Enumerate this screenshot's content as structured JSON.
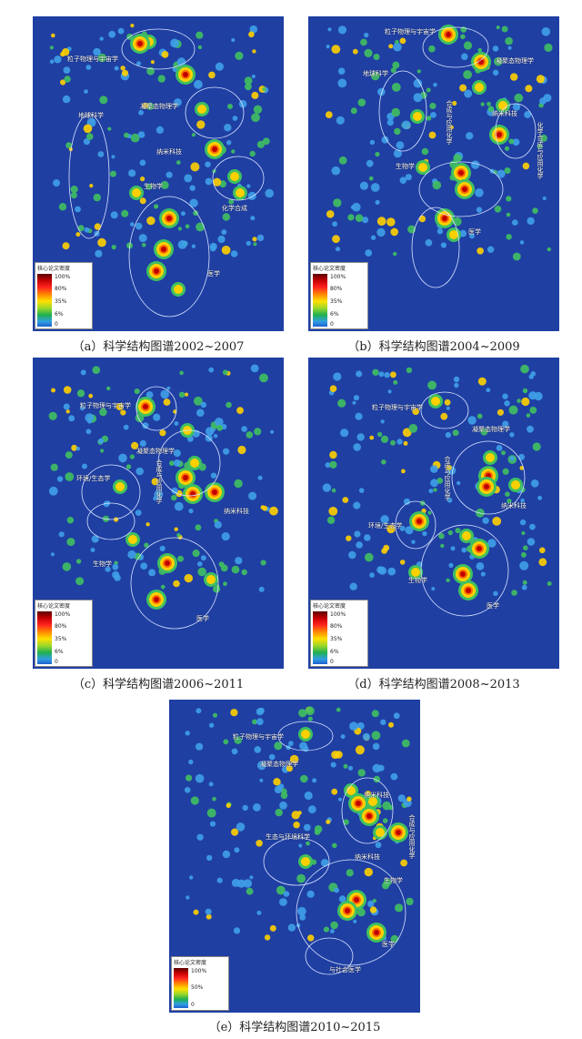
{
  "panels": [
    {
      "caption": "（a）科学结构图谱2002~2007",
      "legend": {
        "title": "核心论文密度",
        "ticks": [
          "100%",
          "80%",
          "35%",
          "6%",
          "0"
        ]
      },
      "labels": [
        {
          "text": "粒子物理与宇宙学"
        },
        {
          "text": "凝聚态物理学"
        },
        {
          "text": "地球科学"
        },
        {
          "text": "纳米科技"
        },
        {
          "text": "生物学"
        },
        {
          "text": "化学合成"
        },
        {
          "text": "医学"
        }
      ]
    },
    {
      "caption": "（b）科学结构图谱2004~2009",
      "legend": {
        "title": "核心论文密度",
        "ticks": [
          "100%",
          "80%",
          "35%",
          "6%",
          "0"
        ]
      },
      "labels": [
        {
          "text": "粒子物理与宇宙学"
        },
        {
          "text": "凝聚态物理学"
        },
        {
          "text": "地球科学"
        },
        {
          "text": "合成与应用化学"
        },
        {
          "text": "纳米科技"
        },
        {
          "text": "生物学"
        },
        {
          "text": "化学合成与应用化学"
        },
        {
          "text": "医学"
        }
      ]
    },
    {
      "caption": "（c）科学结构图谱2006~2011",
      "legend": {
        "title": "核心论文密度",
        "ticks": [
          "100%",
          "80%",
          "35%",
          "6%",
          "0"
        ]
      },
      "labels": [
        {
          "text": "粒子物理与宇宙学"
        },
        {
          "text": "凝聚态物理学"
        },
        {
          "text": "环境/生态学"
        },
        {
          "text": "合成与应用化学"
        },
        {
          "text": "纳米科技"
        },
        {
          "text": "生物学"
        },
        {
          "text": "医学"
        }
      ]
    },
    {
      "caption": "（d）科学结构图谱2008~2013",
      "legend": {
        "title": "核心论文密度",
        "ticks": [
          "100%",
          "80%",
          "35%",
          "6%",
          "0"
        ]
      },
      "labels": [
        {
          "text": "粒子物理与宇宙学"
        },
        {
          "text": "凝聚态物理学"
        },
        {
          "text": "合成与应用化学"
        },
        {
          "text": "纳米科技"
        },
        {
          "text": "环境/生态学"
        },
        {
          "text": "生物学"
        },
        {
          "text": "医学"
        }
      ]
    },
    {
      "caption": "（e）科学结构图谱2010~2015",
      "legend": {
        "title": "核心论文密度",
        "ticks": [
          "100%",
          "50%",
          "0"
        ]
      },
      "labels": [
        {
          "text": "粒子物理与宇宙学"
        },
        {
          "text": "凝聚态物理学"
        },
        {
          "text": "纳米科技"
        },
        {
          "text": "合成与应用化学"
        },
        {
          "text": "生态与环境科学"
        },
        {
          "text": "纳米科技"
        },
        {
          "text": "生物学"
        },
        {
          "text": "医学"
        },
        {
          "text": "与社会医学"
        }
      ]
    }
  ],
  "colors": {
    "background": "#1f3fa3",
    "hot": "#c00000",
    "warm": "#ffd000",
    "mild": "#40c060",
    "cool": "#3fa0e8"
  }
}
